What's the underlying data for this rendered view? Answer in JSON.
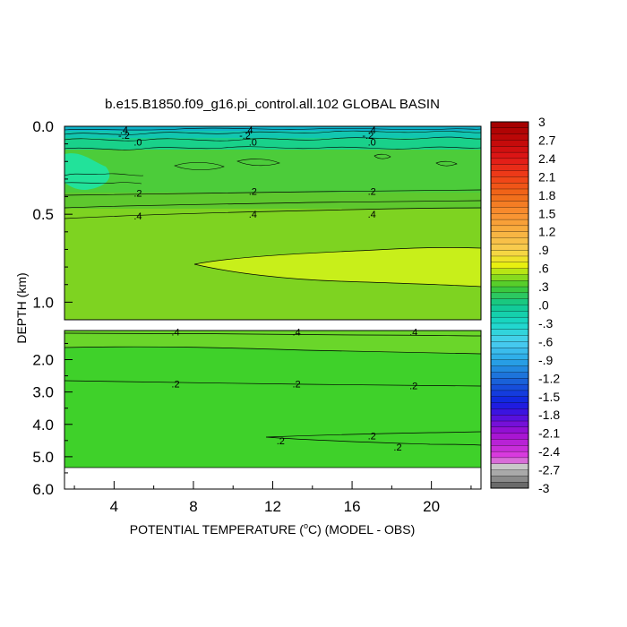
{
  "chart_data": {
    "type": "heatmap",
    "title": "b.e15.B1850.f09_g16.pi_control.all.102 GLOBAL BASIN",
    "xlabel_main": "POTENTIAL TEMPERATURE (",
    "xlabel_sup": "o",
    "xlabel_tail": "C) (MODEL - OBS)",
    "ylabel": "DEPTH (km)",
    "x_range": [
      1.5,
      22.5
    ],
    "x_ticks": [
      {
        "value": 4,
        "label": "4"
      },
      {
        "value": 8,
        "label": "8"
      },
      {
        "value": 12,
        "label": "12"
      },
      {
        "value": 16,
        "label": "16"
      },
      {
        "value": 20,
        "label": "20"
      }
    ],
    "upper_panel": {
      "y_range": [
        0.0,
        1.1
      ],
      "y_ticks": [
        {
          "value": 0.0,
          "label": "0.0"
        },
        {
          "value": 0.5,
          "label": "0.5"
        },
        {
          "value": 1.0,
          "label": "1.0"
        }
      ]
    },
    "lower_panel": {
      "y_range": [
        1.1,
        6.0
      ],
      "y_ticks": [
        {
          "value": 2.0,
          "label": "2.0"
        },
        {
          "value": 3.0,
          "label": "3.0"
        },
        {
          "value": 4.0,
          "label": "4.0"
        },
        {
          "value": 5.0,
          "label": "5.0"
        },
        {
          "value": 6.0,
          "label": "6.0"
        }
      ],
      "no_data_below_depth": 5.3
    },
    "contour_labels": [
      {
        "panel": "upper",
        "x": 4.5,
        "y": 0.02,
        "text": ".4"
      },
      {
        "panel": "upper",
        "x": 10.8,
        "y": 0.02,
        "text": ".4"
      },
      {
        "panel": "upper",
        "x": 17.0,
        "y": 0.02,
        "text": ".4"
      },
      {
        "panel": "upper",
        "x": 4.5,
        "y": 0.05,
        "text": "-.2"
      },
      {
        "panel": "upper",
        "x": 10.6,
        "y": 0.05,
        "text": "-.2"
      },
      {
        "panel": "upper",
        "x": 16.8,
        "y": 0.05,
        "text": "-.2"
      },
      {
        "panel": "upper",
        "x": 5.2,
        "y": 0.09,
        "text": ".0"
      },
      {
        "panel": "upper",
        "x": 11.0,
        "y": 0.09,
        "text": ".0"
      },
      {
        "panel": "upper",
        "x": 17.0,
        "y": 0.09,
        "text": ".0"
      },
      {
        "panel": "upper",
        "x": 5.2,
        "y": 0.38,
        "text": ".2"
      },
      {
        "panel": "upper",
        "x": 11.0,
        "y": 0.37,
        "text": ".2"
      },
      {
        "panel": "upper",
        "x": 17.0,
        "y": 0.37,
        "text": ".2"
      },
      {
        "panel": "upper",
        "x": 5.2,
        "y": 0.51,
        "text": ".4"
      },
      {
        "panel": "upper",
        "x": 11.0,
        "y": 0.5,
        "text": ".4"
      },
      {
        "panel": "upper",
        "x": 17.0,
        "y": 0.5,
        "text": ".4"
      },
      {
        "panel": "lower",
        "x": 7.1,
        "y": 1.14,
        "text": ".4"
      },
      {
        "panel": "lower",
        "x": 13.2,
        "y": 1.14,
        "text": ".4"
      },
      {
        "panel": "lower",
        "x": 19.1,
        "y": 1.14,
        "text": ".4"
      },
      {
        "panel": "lower",
        "x": 7.1,
        "y": 2.75,
        "text": ".2"
      },
      {
        "panel": "lower",
        "x": 13.2,
        "y": 2.75,
        "text": ".2"
      },
      {
        "panel": "lower",
        "x": 19.1,
        "y": 2.8,
        "text": ".2"
      },
      {
        "panel": "lower",
        "x": 12.4,
        "y": 4.5,
        "text": ".2"
      },
      {
        "panel": "lower",
        "x": 17.0,
        "y": 4.35,
        "text": ".2"
      },
      {
        "panel": "lower",
        "x": 18.3,
        "y": 4.7,
        "text": ".2"
      }
    ],
    "colorbar": {
      "labels": [
        "3",
        "2.7",
        "2.4",
        "2.1",
        "1.8",
        "1.5",
        "1.2",
        ".9",
        ".6",
        ".3",
        ".0",
        "-.3",
        "-.6",
        "-.9",
        "-1.2",
        "-1.5",
        "-1.8",
        "-2.1",
        "-2.4",
        "-2.7",
        "-3"
      ],
      "min": -3,
      "max": 3
    },
    "grid": false,
    "legend": "right"
  }
}
